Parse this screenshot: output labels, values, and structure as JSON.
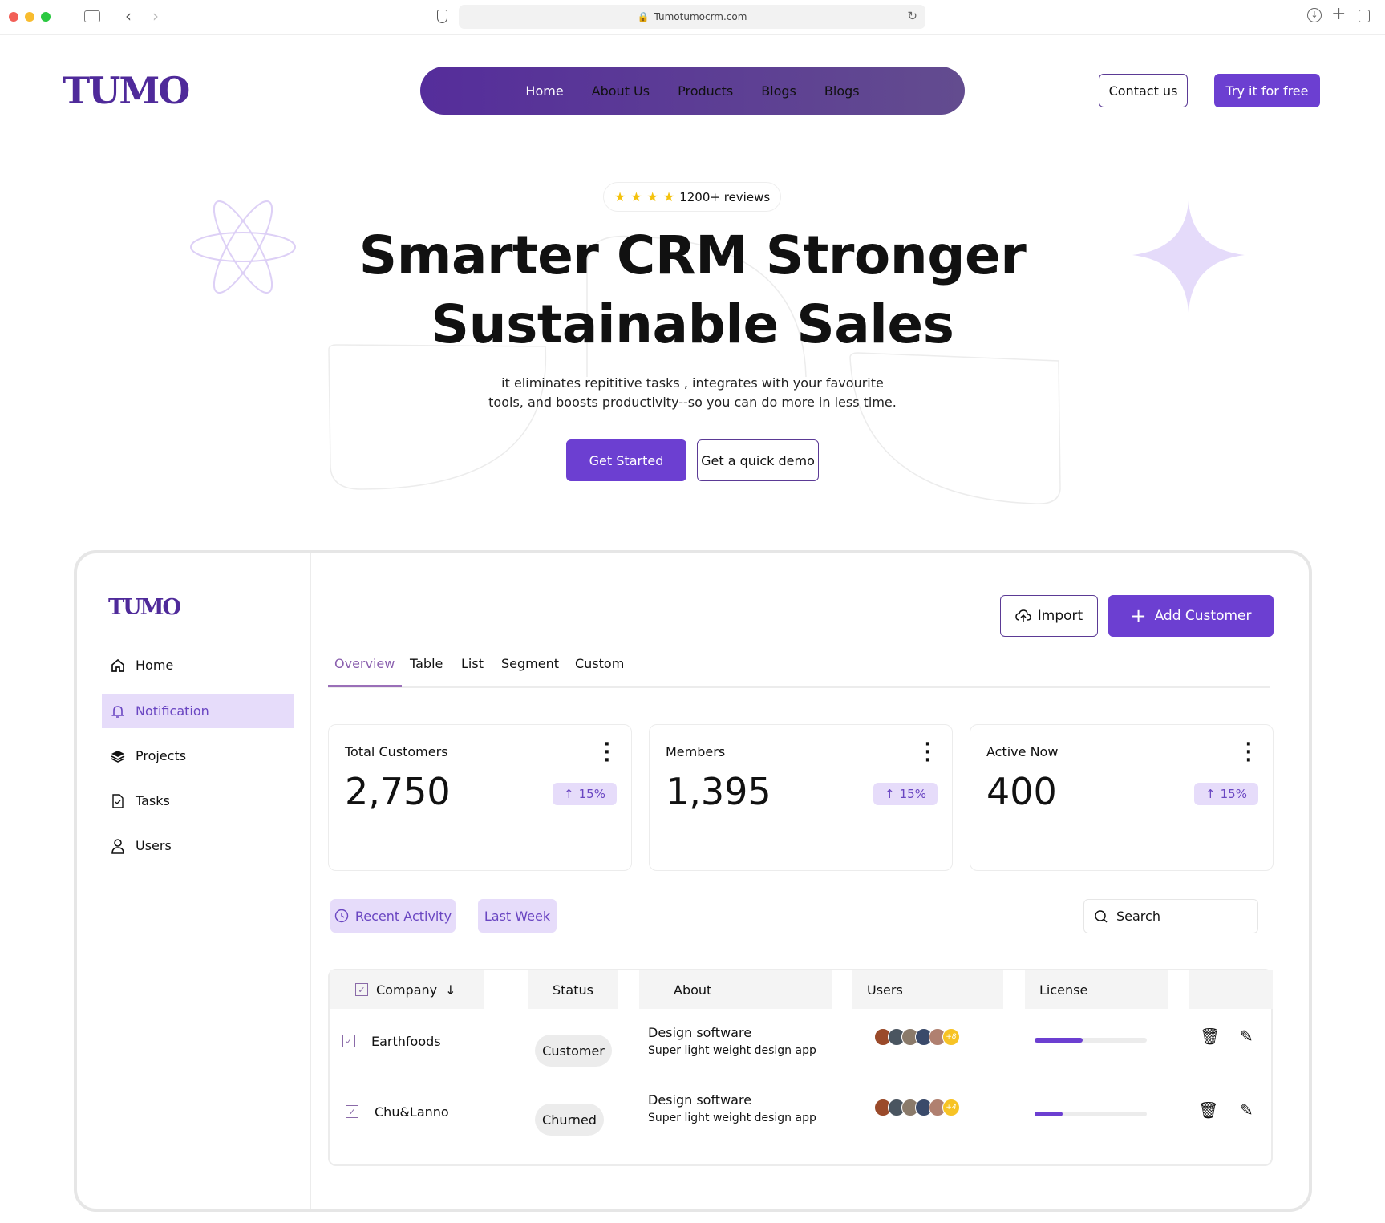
{
  "browser": {
    "url": "Tumotumocrm.com"
  },
  "header": {
    "logo": "TUMO",
    "nav": [
      "Home",
      "About Us",
      "Products",
      "Blogs",
      "Blogs"
    ],
    "contact_label": "Contact us",
    "try_label": "Try it for free"
  },
  "hero": {
    "reviews": "1200+ reviews",
    "stars": 4,
    "title_line1": "Smarter CRM Stronger",
    "title_line2": "Sustainable Sales",
    "subtitle_line1": "it eliminates repititive tasks , integrates with your favourite",
    "subtitle_line2": "tools, and boosts productivity--so you can do more in less time.",
    "primary_cta": "Get Started",
    "secondary_cta": "Get a quick demo"
  },
  "dashboard": {
    "logo": "TUMO",
    "sidebar": [
      {
        "label": "Home",
        "icon": "home-icon"
      },
      {
        "label": "Notification",
        "icon": "bell-icon",
        "active": true
      },
      {
        "label": "Projects",
        "icon": "layers-icon"
      },
      {
        "label": "Tasks",
        "icon": "file-check-icon"
      },
      {
        "label": "Users",
        "icon": "user-icon"
      }
    ],
    "import_label": "Import",
    "add_label": "Add Customer",
    "tabs": [
      "Overview",
      "Table",
      "List",
      "Segment",
      "Custom"
    ],
    "stats": [
      {
        "label": "Total Customers",
        "value": "2,750",
        "change": "15%"
      },
      {
        "label": "Members",
        "value": "1,395",
        "change": "15%"
      },
      {
        "label": "Active Now",
        "value": "400",
        "change": "15%"
      }
    ],
    "filters": {
      "recent": "Recent Activity",
      "period": "Last Week",
      "search_placeholder": "Search"
    },
    "table": {
      "headers": [
        "Company",
        "Status",
        "About",
        "Users",
        "License"
      ],
      "rows": [
        {
          "company": "Earthfoods",
          "status": "Customer",
          "about_title": "Design software",
          "about_sub": "Super light weight design app",
          "users_more": "+8",
          "license": 43
        },
        {
          "company": "Chu&Lanno",
          "status": "Churned",
          "about_title": "Design software",
          "about_sub": "Super light weight design app",
          "users_more": "+4",
          "license": 25
        }
      ]
    }
  },
  "colors": {
    "accent": "#6c3fd1",
    "nav_bg": "#552d9b",
    "highlight": "#e6dcfa",
    "star": "#f4c20d"
  }
}
